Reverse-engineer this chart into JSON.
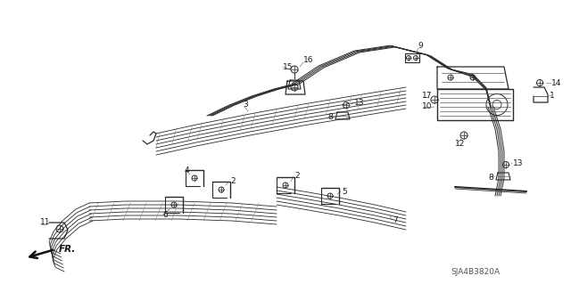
{
  "background_color": "#ffffff",
  "diagram_code": "SJA4B3820A",
  "fr_label": "FR.",
  "fig_width": 6.4,
  "fig_height": 3.19,
  "dpi": 100,
  "line_color": "#2a2a2a",
  "text_color": "#1a1a1a"
}
